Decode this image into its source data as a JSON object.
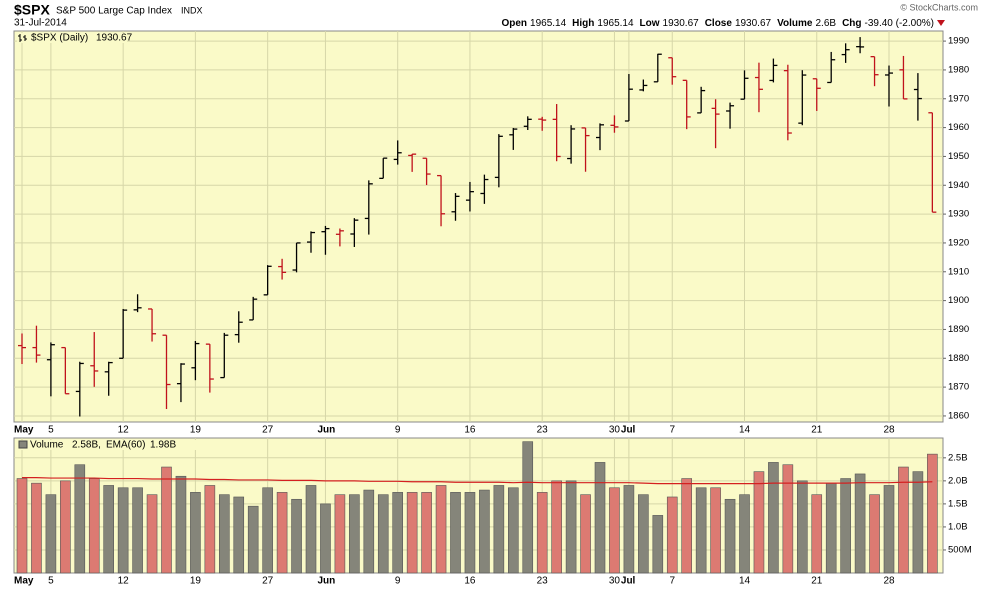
{
  "header": {
    "symbol": "$SPX",
    "name": "S&P 500 Large Cap Index",
    "exchange": "INDX",
    "date": "31-Jul-2014",
    "copyright": "© StockCharts.com",
    "stats": [
      {
        "label": "Open",
        "value": "1965.14"
      },
      {
        "label": "High",
        "value": "1965.14"
      },
      {
        "label": "Low",
        "value": "1930.67"
      },
      {
        "label": "Close",
        "value": "1930.67"
      },
      {
        "label": "Volume",
        "value": "2.6B"
      },
      {
        "label": "Chg",
        "value": "-39.40 (-2.00%)"
      }
    ]
  },
  "chart_data": [
    {
      "type": "ohlc",
      "legend": "$SPX (Daily)",
      "legend_value": "1930.67",
      "up_color": "#000000",
      "down_color": "#c0121c",
      "categories": [
        "May",
        null,
        "5",
        null,
        null,
        null,
        null,
        "12",
        null,
        null,
        null,
        null,
        "19",
        null,
        null,
        null,
        null,
        "27",
        null,
        null,
        null,
        "Jun",
        null,
        null,
        null,
        null,
        "9",
        null,
        null,
        null,
        null,
        "16",
        null,
        null,
        null,
        null,
        "23",
        null,
        null,
        null,
        null,
        "30",
        "Jul",
        null,
        null,
        "7",
        null,
        null,
        null,
        null,
        "14",
        null,
        null,
        null,
        null,
        "21",
        null,
        null,
        null,
        null,
        "28",
        null,
        null,
        null
      ],
      "open": [
        1884.4,
        1883.7,
        1879.5,
        1883.7,
        1868.5,
        1877.4,
        1875.3,
        1880.0,
        1896.8,
        1897.1,
        1888.0,
        1871.2,
        1876.7,
        1884.9,
        1873.3,
        1888.2,
        1893.3,
        1902.0,
        1911.8,
        1910.6,
        1920.3,
        1923.9,
        1923.0,
        1923.1,
        1928.5,
        1942.4,
        1948.97,
        1950.34,
        1949.37,
        1943.35,
        1930.8,
        1934.84,
        1937.15,
        1942.73,
        1957.5,
        1960.45,
        1962.92,
        1962.86,
        1949.27,
        1959.89,
        1956.56,
        1960.79,
        1962.29,
        1973.06,
        1975.88,
        1984.22,
        1976.39,
        1965.1,
        1966.67,
        1965.76,
        1969.86,
        1977.36,
        1976.35,
        1979.75,
        1961.54,
        1976.93,
        1975.65,
        1985.32,
        1988.07,
        1984.6,
        1978.25,
        1980.03,
        1973.21,
        1965.14
      ],
      "high": [
        1888.6,
        1891.3,
        1885.5,
        1883.7,
        1878.8,
        1889.1,
        1878.8,
        1897.1,
        1902.2,
        1897.1,
        1888.0,
        1878.3,
        1886.0,
        1884.9,
        1888.8,
        1896.3,
        1901.3,
        1912.3,
        1914.5,
        1920.0,
        1924.0,
        1925.9,
        1925.0,
        1928.6,
        1941.7,
        1949.4,
        1955.55,
        1950.86,
        1949.37,
        1943.35,
        1937.3,
        1941.15,
        1943.69,
        1957.74,
        1959.87,
        1963.91,
        1963.74,
        1968.17,
        1960.83,
        1959.89,
        1961.47,
        1964.24,
        1978.58,
        1976.67,
        1985.59,
        1984.22,
        1976.39,
        1974.15,
        1969.84,
        1968.67,
        1979.85,
        1982.52,
        1983.94,
        1981.8,
        1979.91,
        1976.93,
        1986.24,
        1989.23,
        1991.39,
        1984.6,
        1981.52,
        1984.85,
        1978.9,
        1965.14
      ],
      "low": [
        1878.0,
        1878.5,
        1866.8,
        1867.7,
        1859.8,
        1870.1,
        1867.0,
        1880.0,
        1896.0,
        1885.8,
        1862.4,
        1864.8,
        1872.4,
        1868.1,
        1873.3,
        1885.4,
        1893.3,
        1902.0,
        1907.3,
        1909.8,
        1916.6,
        1915.9,
        1918.8,
        1918.6,
        1922.9,
        1942.4,
        1947.16,
        1944.64,
        1940.08,
        1925.78,
        1927.69,
        1930.91,
        1933.55,
        1939.29,
        1952.26,
        1959.17,
        1958.89,
        1948.34,
        1947.49,
        1944.69,
        1952.18,
        1958.22,
        1962.29,
        1972.58,
        1975.88,
        1974.88,
        1959.46,
        1965.1,
        1952.86,
        1959.63,
        1969.86,
        1965.34,
        1975.67,
        1955.59,
        1960.82,
        1965.77,
        1975.65,
        1982.44,
        1985.79,
        1974.37,
        1967.31,
        1969.95,
        1962.42,
        1930.67
      ],
      "close": [
        1883.7,
        1881.1,
        1884.7,
        1867.7,
        1878.2,
        1875.6,
        1878.5,
        1896.7,
        1897.5,
        1888.5,
        1870.9,
        1878.0,
        1885.1,
        1872.8,
        1888.0,
        1892.5,
        1900.5,
        1911.9,
        1909.8,
        1920.0,
        1923.6,
        1924.97,
        1924.2,
        1927.9,
        1940.5,
        1949.4,
        1951.27,
        1950.79,
        1943.89,
        1930.11,
        1936.16,
        1937.78,
        1941.99,
        1956.98,
        1959.48,
        1962.87,
        1962.61,
        1949.98,
        1959.53,
        1957.22,
        1960.96,
        1960.23,
        1973.32,
        1974.62,
        1985.44,
        1977.65,
        1963.71,
        1972.83,
        1964.68,
        1967.57,
        1977.1,
        1973.28,
        1981.57,
        1958.12,
        1978.22,
        1973.63,
        1983.53,
        1987.01,
        1987.98,
        1978.34,
        1978.91,
        1969.95,
        1970.07,
        1930.67
      ],
      "ylim": [
        1857.9,
        1993.5
      ],
      "yticks": [
        1860,
        1870,
        1880,
        1890,
        1900,
        1910,
        1920,
        1930,
        1940,
        1950,
        1960,
        1970,
        1980,
        1990
      ],
      "grid": true
    },
    {
      "type": "volume",
      "ylim": [
        0,
        2.93
      ],
      "yticks": [
        {
          "value": 0.5,
          "label": "500M"
        },
        {
          "value": 1.0,
          "label": "1.0B"
        },
        {
          "value": 1.5,
          "label": "1.5B"
        },
        {
          "value": 2.0,
          "label": "2.0B"
        },
        {
          "value": 2.5,
          "label": "2.5B"
        }
      ],
      "series": [
        {
          "name": "Volume",
          "legend_value": "2.58B,",
          "up_color": "#85857a",
          "down_color": "#dc7a72",
          "values": [
            2.05,
            1.95,
            1.7,
            2.0,
            2.35,
            2.05,
            1.9,
            1.85,
            1.85,
            1.7,
            2.3,
            2.1,
            1.75,
            1.9,
            1.7,
            1.65,
            1.45,
            1.85,
            1.75,
            1.6,
            1.9,
            1.5,
            1.7,
            1.7,
            1.8,
            1.7,
            1.75,
            1.75,
            1.75,
            1.9,
            1.75,
            1.75,
            1.8,
            1.9,
            1.85,
            2.85,
            1.75,
            2.0,
            2.0,
            1.7,
            2.4,
            1.85,
            1.9,
            1.7,
            1.25,
            1.65,
            2.05,
            1.85,
            1.85,
            1.6,
            1.7,
            2.2,
            2.4,
            2.35,
            2.0,
            1.7,
            1.95,
            2.05,
            2.15,
            1.7,
            1.9,
            2.3,
            2.2,
            2.58
          ]
        },
        {
          "name": "EMA(60)",
          "legend_value": "1.98B",
          "color": "#d42020",
          "values": [
            2.07,
            2.07,
            2.06,
            2.06,
            2.06,
            2.06,
            2.05,
            2.05,
            2.05,
            2.04,
            2.04,
            2.04,
            2.04,
            2.03,
            2.03,
            2.02,
            2.02,
            2.02,
            2.01,
            2.01,
            2.01,
            2.0,
            2.0,
            2.0,
            1.99,
            1.99,
            1.99,
            1.98,
            1.98,
            1.98,
            1.97,
            1.97,
            1.97,
            1.97,
            1.96,
            1.97,
            1.96,
            1.96,
            1.96,
            1.96,
            1.96,
            1.96,
            1.96,
            1.95,
            1.94,
            1.94,
            1.94,
            1.94,
            1.94,
            1.94,
            1.94,
            1.94,
            1.95,
            1.95,
            1.95,
            1.95,
            1.95,
            1.95,
            1.96,
            1.96,
            1.96,
            1.97,
            1.97,
            1.98
          ]
        }
      ],
      "grid": true
    }
  ]
}
